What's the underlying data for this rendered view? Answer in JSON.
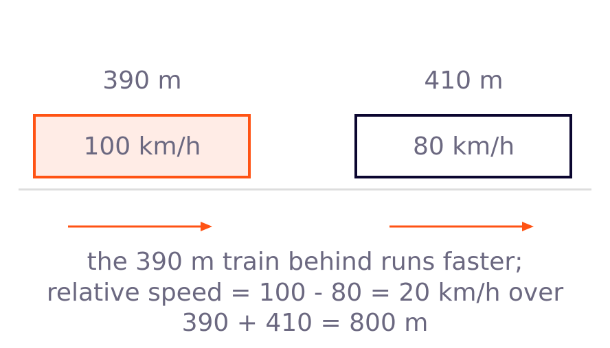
{
  "trains": [
    {
      "length": "390 m",
      "speed": "100 km/h"
    },
    {
      "length": "410 m",
      "speed": "80 km/h"
    }
  ],
  "caption": [
    "the 390 m train behind runs faster;",
    "relative speed = 100 - 80 = 20 km/h over",
    "390 + 410 = 800 m"
  ]
}
